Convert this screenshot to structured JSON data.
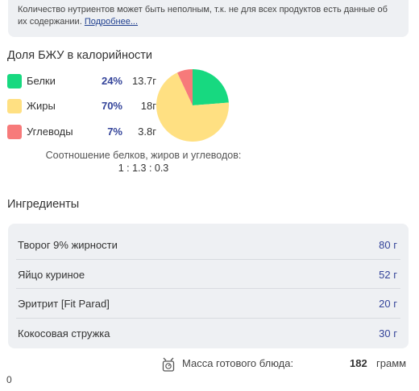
{
  "notice": {
    "text": "Количество нутриентов может быть неполным, т.к. не для всех продуктов есть данные об их содержании.",
    "link": "Подробнее..."
  },
  "bju": {
    "title": "Доля БЖУ в калорийности",
    "items": [
      {
        "name": "Белки",
        "percent": "24%",
        "grams": "13.7г",
        "color": "#17d980"
      },
      {
        "name": "Жиры",
        "percent": "70%",
        "grams": "18г",
        "color": "#ffe082"
      },
      {
        "name": "Углеводы",
        "percent": "7%",
        "grams": "3.8г",
        "color": "#f77a7a"
      }
    ],
    "ratio_caption": "Соотношение белков, жиров и углеводов:",
    "ratio_value": "1 : 1.3 : 0.3"
  },
  "chart_data": {
    "type": "pie",
    "categories": [
      "Белки",
      "Жиры",
      "Углеводы"
    ],
    "values": [
      24,
      70,
      7
    ],
    "colors": [
      "#17d980",
      "#ffe082",
      "#f77a7a"
    ]
  },
  "ingredients": {
    "title": "Ингредиенты",
    "items": [
      {
        "name": "Творог 9% жирности",
        "amount": "80 г"
      },
      {
        "name": "Яйцо куриное",
        "amount": "52 г"
      },
      {
        "name": "Эритрит [Fit Parad]",
        "amount": "20 г"
      },
      {
        "name": "Кокосовая стружка",
        "amount": "30 г"
      }
    ]
  },
  "mass": {
    "icon": "scale-pot-icon",
    "label": "Масса готового блюда:",
    "value": "182",
    "unit": "грамм"
  },
  "footer": {
    "zero": "0"
  }
}
